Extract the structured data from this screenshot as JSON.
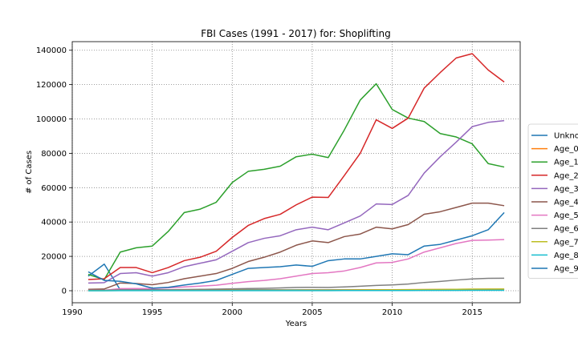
{
  "chart_data": {
    "type": "line",
    "title": "FBI Cases (1991 - 2017) for: Shoplifting",
    "xlabel": "Years",
    "ylabel": "# of Cases",
    "xlim": [
      1990,
      2018
    ],
    "ylim": [
      -7000,
      145000
    ],
    "xticks": [
      1990,
      1995,
      2000,
      2005,
      2010,
      2015
    ],
    "yticks": [
      0,
      20000,
      40000,
      60000,
      80000,
      100000,
      120000,
      140000
    ],
    "grid": true,
    "legend_position": "right",
    "x": [
      1991,
      1992,
      1993,
      1994,
      1995,
      1996,
      1997,
      1998,
      1999,
      2000,
      2001,
      2002,
      2003,
      2004,
      2005,
      2006,
      2007,
      2008,
      2009,
      2010,
      2011,
      2012,
      2013,
      2014,
      2015,
      2016,
      2017
    ],
    "series": [
      {
        "name": "Unkno",
        "color": "#1f77b4",
        "values": [
          8500,
          15500,
          500,
          500,
          500,
          500,
          500,
          500,
          500,
          500,
          500,
          500,
          500,
          500,
          500,
          500,
          500,
          500,
          500,
          500,
          500,
          500,
          500,
          500,
          500,
          500,
          500
        ]
      },
      {
        "name": "Age_0",
        "color": "#ff7f0e",
        "values": [
          200,
          200,
          200,
          200,
          200,
          200,
          200,
          250,
          250,
          300,
          300,
          300,
          350,
          350,
          400,
          400,
          450,
          500,
          550,
          600,
          650,
          700,
          750,
          800,
          850,
          900,
          950
        ]
      },
      {
        "name": "Age_1",
        "color": "#2ca02c",
        "values": [
          9500,
          6500,
          22500,
          25000,
          26000,
          34500,
          45500,
          47500,
          51500,
          63000,
          69500,
          70700,
          72500,
          78000,
          79500,
          77500,
          93500,
          111000,
          120500,
          105500,
          100500,
          98500,
          91500,
          89500,
          85500,
          74000,
          72000
        ]
      },
      {
        "name": "Age_2",
        "color": "#d62728",
        "values": [
          6500,
          7000,
          13500,
          13500,
          10500,
          13500,
          17500,
          19500,
          23000,
          31000,
          38000,
          42000,
          44500,
          50000,
          54500,
          54300,
          67000,
          80000,
          99500,
          94500,
          100500,
          118000,
          127000,
          135500,
          138000,
          128500,
          121500
        ]
      },
      {
        "name": "Age_3",
        "color": "#9467bd",
        "values": [
          4500,
          4700,
          10000,
          10500,
          8500,
          10500,
          14000,
          16000,
          18000,
          23000,
          28000,
          30500,
          32000,
          35500,
          37000,
          35500,
          39500,
          43500,
          50500,
          50200,
          55500,
          68500,
          78000,
          86500,
          95500,
          98000,
          99000
        ]
      },
      {
        "name": "Age_4",
        "color": "#8c564b",
        "values": [
          800,
          1000,
          4500,
          4200,
          3500,
          4800,
          7000,
          8500,
          10000,
          13000,
          17000,
          19500,
          22500,
          26500,
          29000,
          28000,
          31500,
          33000,
          37000,
          36000,
          38500,
          44500,
          46000,
          48500,
          51000,
          51000,
          49500
        ]
      },
      {
        "name": "Age_5",
        "color": "#e377c2",
        "values": [
          300,
          300,
          1200,
          1300,
          1200,
          1700,
          2200,
          2700,
          3200,
          4300,
          5300,
          6000,
          7000,
          8500,
          10000,
          10500,
          11500,
          13500,
          16200,
          16500,
          18500,
          22500,
          25000,
          27500,
          29300,
          29500,
          29800
        ]
      },
      {
        "name": "Age_6",
        "color": "#7f7f7f",
        "values": [
          200,
          200,
          500,
          500,
          500,
          600,
          700,
          800,
          900,
          1100,
          1300,
          1400,
          1600,
          1900,
          2000,
          1900,
          2200,
          2600,
          3100,
          3400,
          3900,
          4800,
          5400,
          6200,
          6900,
          7200,
          7300
        ]
      },
      {
        "name": "Age_7",
        "color": "#bcbd22",
        "values": [
          50,
          50,
          100,
          100,
          100,
          100,
          150,
          150,
          150,
          200,
          200,
          250,
          250,
          300,
          300,
          300,
          350,
          400,
          450,
          500,
          550,
          650,
          700,
          800,
          900,
          950,
          1000
        ]
      },
      {
        "name": "Age_8",
        "color": "#17becf",
        "values": [
          20,
          20,
          30,
          30,
          30,
          40,
          40,
          50,
          50,
          60,
          60,
          70,
          70,
          80,
          80,
          80,
          90,
          100,
          110,
          120,
          130,
          150,
          160,
          180,
          200,
          210,
          220
        ]
      },
      {
        "name": "Age_9",
        "color": "#1f77b4",
        "values": [
          11000,
          6000,
          5500,
          4000,
          1500,
          2000,
          3300,
          4500,
          6000,
          9500,
          13000,
          13500,
          14000,
          15000,
          14200,
          17500,
          18500,
          18500,
          20000,
          21500,
          21000,
          26000,
          27000,
          29500,
          32000,
          35500,
          45500
        ]
      }
    ]
  }
}
